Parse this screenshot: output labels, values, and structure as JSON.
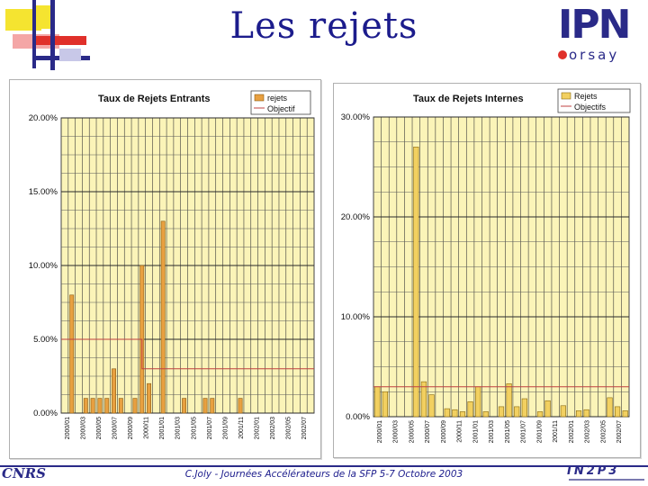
{
  "slide": {
    "title": "Les rejets",
    "footer": "C.Joly - Journées Accélérateurs de la SFP  5-7 Octobre 2003",
    "logo_top_text": "IPN",
    "logo_top_subtext": "orsay",
    "logo_bottom_left_text": "CNRS",
    "logo_bottom_right_text": "IN2P3",
    "accent_colors": {
      "title": "#1c1c8c",
      "deco_red": "#e0302a",
      "deco_yellow": "#f5e430",
      "deco_blue": "#2a2a88"
    }
  },
  "chart_data": [
    {
      "type": "bar",
      "title": "Taux de Rejets Entrants",
      "legend": {
        "placement": "top-right",
        "entries": [
          "rejets",
          "Objectif"
        ]
      },
      "y_ticks": [
        "20.00%",
        "15.00%",
        "10.00%",
        "5.00%",
        "0.00%"
      ],
      "ylim": [
        0,
        20
      ],
      "grid": true,
      "colors": {
        "plot_bg": "#fbf4b8",
        "bar": "#e8a040",
        "bar_edge": "#8a5a10",
        "objective": "#c04040"
      },
      "x_labels": [
        "2000/01",
        "2000/03",
        "2000/05",
        "2000/07",
        "2000/09",
        "2000/11",
        "2001/01",
        "2001/03",
        "2001/05",
        "2001/07",
        "2001/09",
        "2001/11",
        "2002/01",
        "2002/03",
        "2002/05",
        "2002/07"
      ],
      "values": [
        0,
        8,
        0,
        1,
        1,
        1,
        1,
        3,
        1,
        0,
        1,
        10,
        2,
        0,
        13,
        0,
        0,
        1,
        0,
        0,
        1,
        1,
        0,
        0,
        0,
        1,
        0,
        0,
        0,
        0,
        0,
        0,
        0,
        0,
        0,
        0
      ],
      "objective": [
        5,
        5,
        5,
        5,
        5,
        5,
        5,
        5,
        5,
        5,
        5,
        3,
        3,
        3,
        3,
        3,
        3,
        3,
        3,
        3,
        3,
        3,
        3,
        3,
        3,
        3,
        3,
        3,
        3,
        3,
        3,
        3,
        3,
        3,
        3,
        3
      ]
    },
    {
      "type": "bar",
      "title": "Taux de Rejets Internes",
      "legend": {
        "placement": "top-right",
        "entries": [
          "Rejets",
          "Objectifs"
        ]
      },
      "y_ticks": [
        "30.00%",
        "20.00%",
        "10.00%",
        "0.00%"
      ],
      "ylim": [
        0,
        30
      ],
      "grid": true,
      "colors": {
        "plot_bg": "#fbf4b8",
        "bar": "#f2d060",
        "bar_edge": "#8a6a10",
        "objective": "#c04040"
      },
      "x_labels": [
        "2000/01",
        "2000/03",
        "2000/05",
        "2000/07",
        "2000/09",
        "2000/11",
        "2001/01",
        "2001/03",
        "2001/05",
        "2001/07",
        "2001/09",
        "2001/11",
        "2002/01",
        "2002/03",
        "2002/05",
        "2002/07"
      ],
      "values": [
        3,
        2.5,
        0,
        0,
        0,
        27,
        3.5,
        2.2,
        0,
        0.8,
        0.7,
        0.5,
        1.5,
        3,
        0.5,
        0,
        1,
        3.3,
        1,
        1.8,
        0,
        0.5,
        1.6,
        0,
        1.1,
        0,
        0.6,
        0.7,
        0,
        0,
        1.9,
        1,
        0.6
      ],
      "objective": [
        3,
        3,
        3,
        3,
        3,
        3,
        3,
        3,
        3,
        3,
        3,
        3,
        3,
        3,
        3,
        3,
        3,
        3,
        3,
        3,
        3,
        3,
        3,
        3,
        3,
        3,
        3,
        3,
        3,
        3,
        3,
        3,
        3
      ]
    }
  ]
}
